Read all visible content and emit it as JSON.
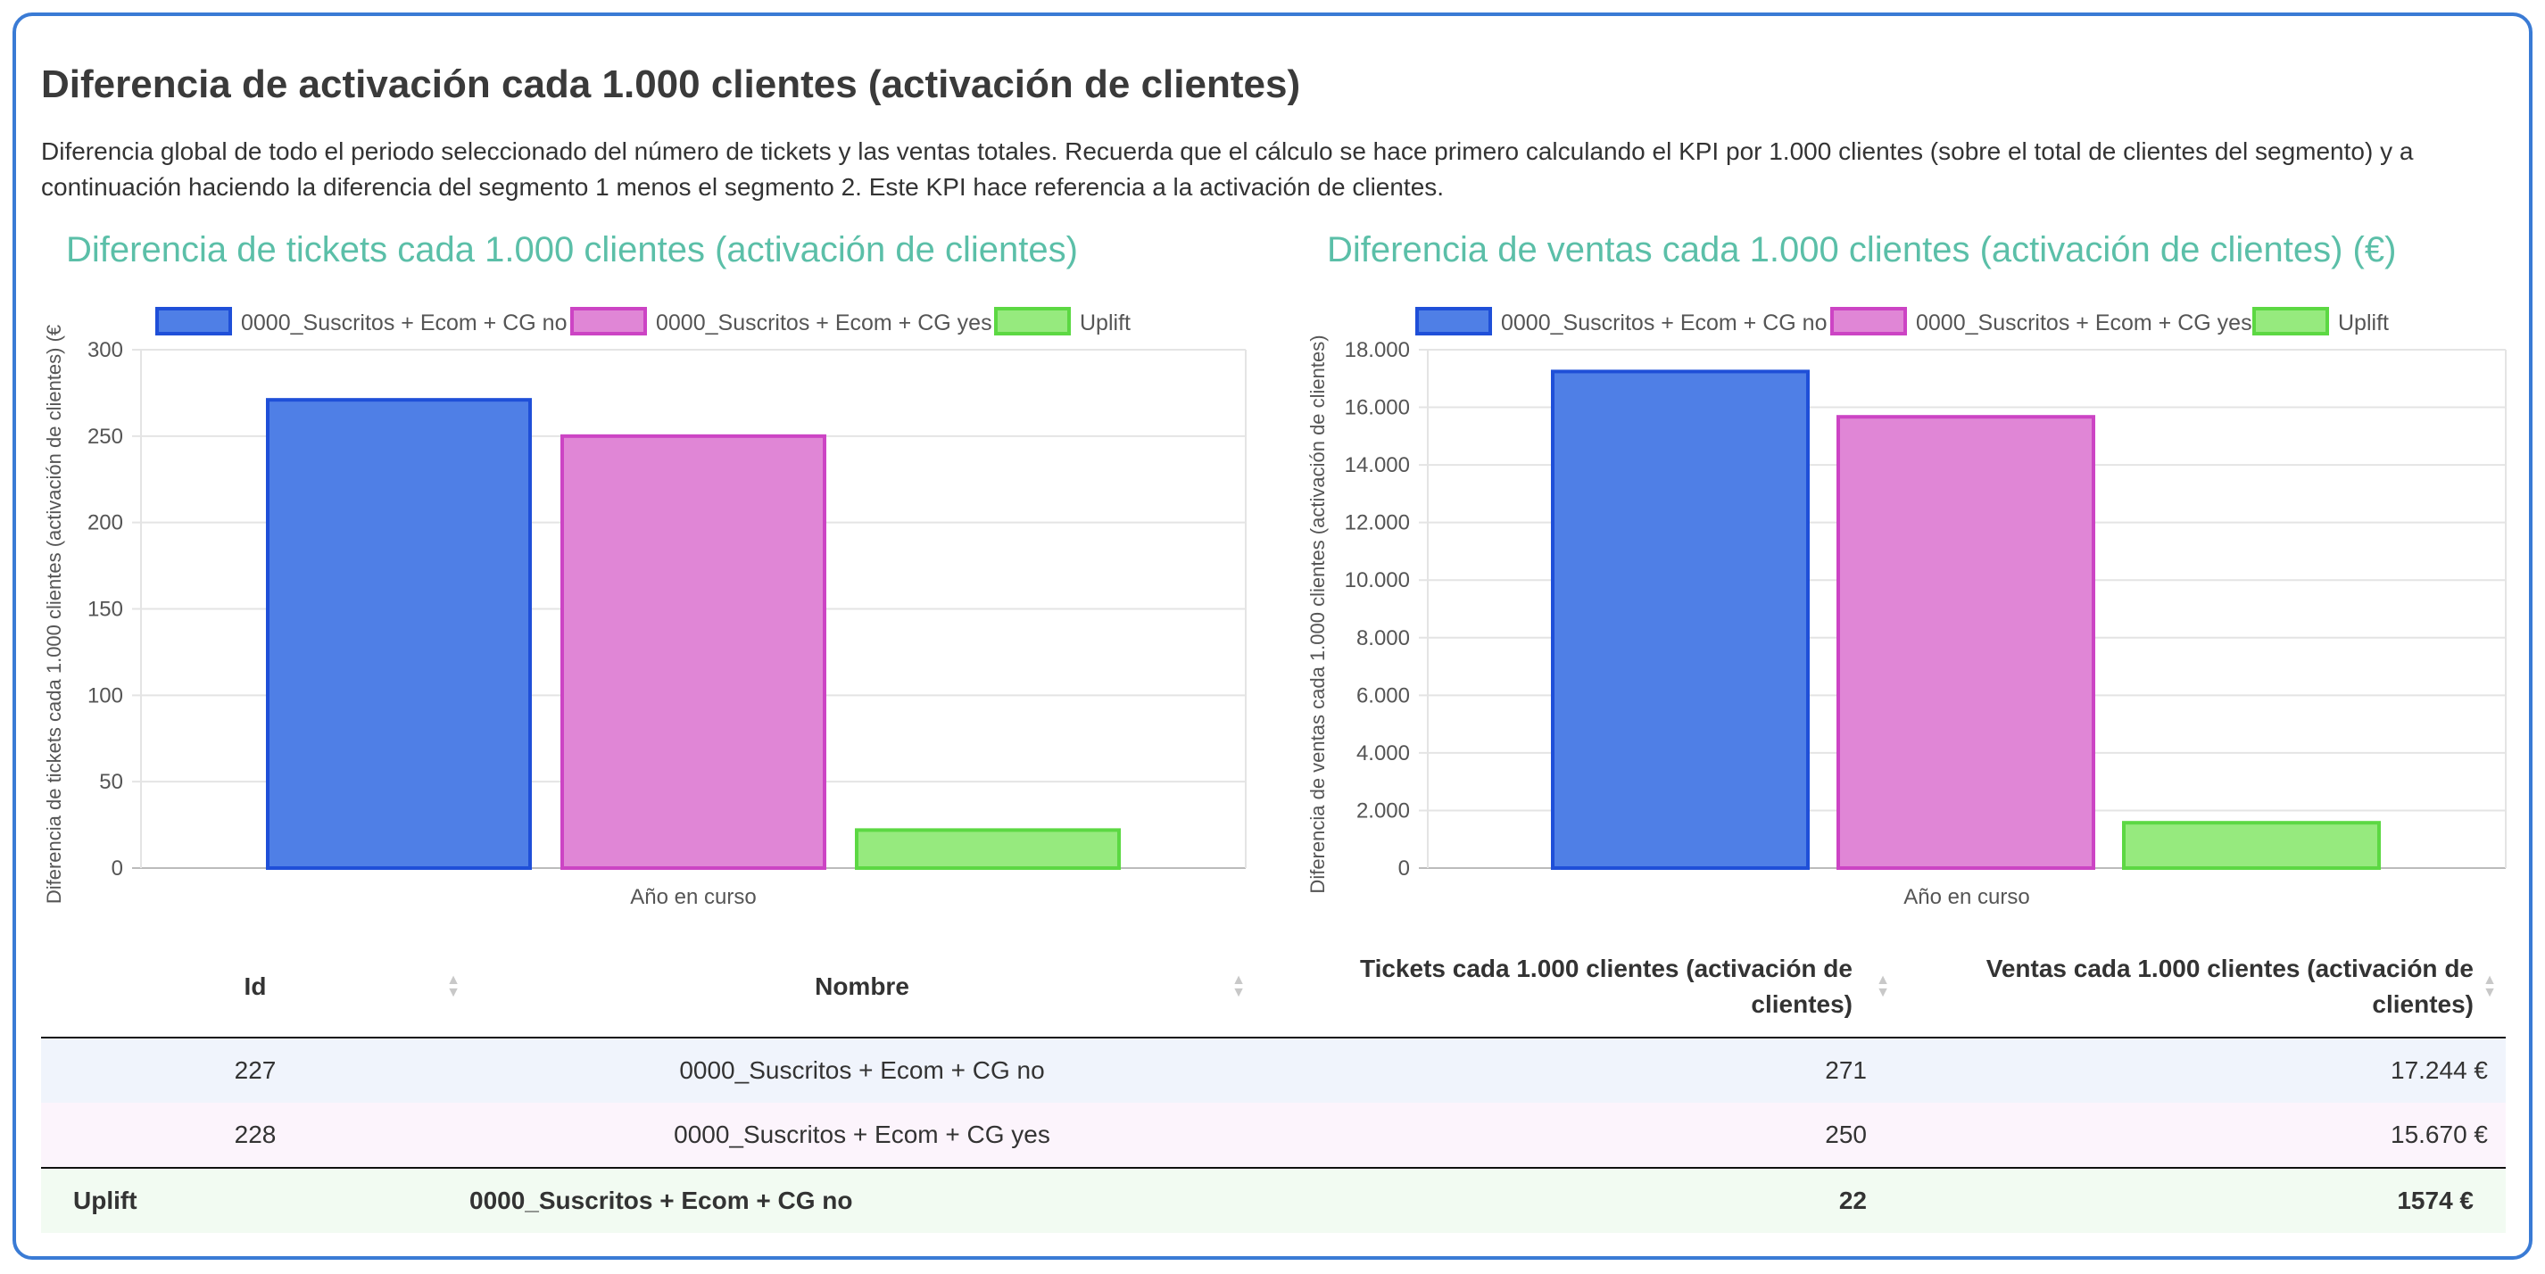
{
  "header": {
    "title": "Diferencia de activación cada 1.000 clientes (activación de clientes)",
    "description": "Diferencia global de todo el periodo seleccionado del número de tickets y las ventas totales. Recuerda que el cálculo se hace primero calculando el KPI por 1.000 clientes (sobre el total de clientes del segmento) y a continuación haciendo la diferencia del segmento 1 menos el segmento 2. Este KPI hace referencia a la activación de clientes."
  },
  "colors": {
    "accent_border": "#3a7bd5",
    "chart_title": "#5bbfa8",
    "series_1_fill": "#4f7fe6",
    "series_1_stroke": "#1f4fd8",
    "series_2_fill": "#e086d6",
    "series_2_stroke": "#cc44c4",
    "series_3_fill": "#96ea7e",
    "series_3_stroke": "#5cd843"
  },
  "chart_data": [
    {
      "type": "bar",
      "title": "Diferencia de tickets cada 1.000 clientes (activación de clientes)",
      "xlabel": "Año en curso",
      "ylabel": "Diferencia de tickets cada 1.000 clientes (activación de clientes) (€",
      "categories": [
        "Año en curso"
      ],
      "ylim": [
        0,
        300
      ],
      "yticks": [
        "0",
        "50",
        "100",
        "150",
        "200",
        "250",
        "300"
      ],
      "ytick_values": [
        0,
        50,
        100,
        150,
        200,
        250,
        300
      ],
      "legend_position": "top",
      "series": [
        {
          "name": "0000_Suscritos + Ecom + CG no",
          "values": [
            271
          ]
        },
        {
          "name": "0000_Suscritos + Ecom + CG yes",
          "values": [
            250
          ]
        },
        {
          "name": "Uplift",
          "values": [
            22
          ]
        }
      ]
    },
    {
      "type": "bar",
      "title": "Diferencia de ventas cada 1.000 clientes (activación de clientes) (€)",
      "xlabel": "Año en curso",
      "ylabel": "Diferencia de ventas cada 1.000 clientes (activación de clientes)",
      "categories": [
        "Año en curso"
      ],
      "ylim": [
        0,
        18000
      ],
      "yticks": [
        "0",
        "2.000",
        "4.000",
        "6.000",
        "8.000",
        "10.000",
        "12.000",
        "14.000",
        "16.000",
        "18.000"
      ],
      "ytick_values": [
        0,
        2000,
        4000,
        6000,
        8000,
        10000,
        12000,
        14000,
        16000,
        18000
      ],
      "legend_position": "top",
      "series": [
        {
          "name": "0000_Suscritos + Ecom + CG no",
          "values": [
            17244
          ]
        },
        {
          "name": "0000_Suscritos + Ecom + CG yes",
          "values": [
            15670
          ]
        },
        {
          "name": "Uplift",
          "values": [
            1574
          ]
        }
      ]
    }
  ],
  "table": {
    "headers": {
      "id": "Id",
      "name": "Nombre",
      "tickets": "Tickets cada 1.000 clientes (activación de clientes)",
      "sales": "Ventas cada 1.000 clientes (activación de clientes)"
    },
    "rows": [
      {
        "id": "227",
        "name": "0000_Suscritos + Ecom + CG no",
        "tickets": "271",
        "sales": "17.244 €"
      },
      {
        "id": "228",
        "name": "0000_Suscritos + Ecom + CG yes",
        "tickets": "250",
        "sales": "15.670 €"
      }
    ],
    "footer": {
      "id": "Uplift",
      "name": "0000_Suscritos + Ecom + CG no",
      "tickets": "22",
      "sales": "1574 €"
    }
  }
}
